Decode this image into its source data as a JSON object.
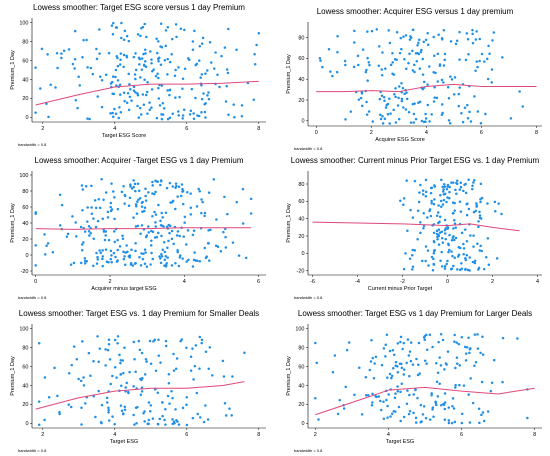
{
  "colors": {
    "points": "#1f8fe6",
    "smooth": "#e0487c",
    "axis": "#000000"
  },
  "chart_data": [
    {
      "type": "scatter",
      "title": "Lowess smoother:  Target ESG score versus 1 day Premium",
      "xlabel": "Target ESG Score",
      "ylabel": "Premium_1 Day",
      "note": "bandwidth = 0.8",
      "xlim": [
        1.7,
        8.2
      ],
      "ylim": [
        -5,
        105
      ],
      "xticks": [
        2,
        4,
        6,
        8
      ],
      "yticks": [
        0,
        20,
        40,
        60,
        80,
        100
      ],
      "x_range": [
        1.8,
        8.0
      ],
      "y_range": [
        -2,
        100
      ],
      "n_points": 260,
      "seed": 11,
      "lowess": {
        "x": [
          1.8,
          3,
          4,
          5,
          6,
          7,
          8
        ],
        "y": [
          13,
          24,
          32,
          35,
          35,
          36,
          38
        ]
      }
    },
    {
      "type": "scatter",
      "title": "Lowess smoother:  Acquirer ESG versus 1 day premium",
      "xlabel": "Acquirer ESG Score",
      "ylabel": "Premium_1 Day",
      "note": "bandwidth = 0.8",
      "xlim": [
        -0.3,
        8.2
      ],
      "ylim": [
        -5,
        95
      ],
      "xticks": [
        0,
        2,
        4,
        6,
        8
      ],
      "yticks": [
        0,
        20,
        40,
        60,
        80
      ],
      "x_range": [
        0,
        7.5
      ],
      "y_range": [
        -3,
        88
      ],
      "n_points": 230,
      "seed": 23,
      "lowess": {
        "x": [
          0,
          1,
          2,
          3,
          4,
          5,
          6,
          7,
          8
        ],
        "y": [
          28,
          28,
          29,
          28,
          33,
          35,
          33,
          33,
          33
        ]
      }
    },
    {
      "type": "scatter",
      "title": "Lowess smoother:  Acquirer -Target ESG vs 1 day Premium",
      "xlabel": "Acquirer minus target ESG",
      "ylabel": "Premium_1 Day",
      "note": "bandwidth = 0.8",
      "xlim": [
        -0.1,
        6.2
      ],
      "ylim": [
        -25,
        105
      ],
      "xticks": [
        0,
        2,
        4,
        6
      ],
      "yticks": [
        -20,
        0,
        20,
        40,
        60,
        80,
        100
      ],
      "x_range": [
        0,
        5.8
      ],
      "y_range": [
        -15,
        95
      ],
      "n_points": 320,
      "seed": 37,
      "lowess": {
        "x": [
          0,
          1,
          2,
          3,
          4,
          5,
          5.8
        ],
        "y": [
          33,
          32,
          33,
          33,
          34,
          34,
          34
        ]
      }
    },
    {
      "type": "scatter",
      "title": "Lowess smoother:  Current minus Prior Target ESG vs. 1 day Premium",
      "xlabel": "Current minus Prior Target",
      "ylabel": "Premium_1 Day",
      "note": "bandwidth = 0.8",
      "xlim": [
        -6.2,
        4.2
      ],
      "ylim": [
        -25,
        95
      ],
      "xticks": [
        -6,
        -4,
        -2,
        0,
        2,
        4
      ],
      "yticks": [
        -20,
        0,
        20,
        40,
        60,
        80
      ],
      "x_range": [
        -2.2,
        2.4
      ],
      "y_range": [
        -20,
        85
      ],
      "n_points": 230,
      "seed": 51,
      "lowess": {
        "x": [
          -6,
          -4,
          -2,
          0,
          1,
          2,
          3.2
        ],
        "y": [
          36,
          35,
          34,
          32,
          34,
          30,
          26
        ]
      }
    },
    {
      "type": "scatter",
      "title": "Lowess smoother:  Target ESG vs. 1 day Premium for Smaller Deals",
      "xlabel": "Target ESG",
      "ylabel": "Premium_1 Day",
      "note": "bandwidth = 0.8",
      "xlim": [
        1.7,
        8.2
      ],
      "ylim": [
        -5,
        105
      ],
      "xticks": [
        2,
        4,
        6,
        8
      ],
      "yticks": [
        0,
        20,
        40,
        60,
        80,
        100
      ],
      "x_range": [
        1.9,
        7.6
      ],
      "y_range": [
        -2,
        92
      ],
      "n_points": 190,
      "seed": 67,
      "lowess": {
        "x": [
          1.8,
          3,
          4,
          5,
          6,
          7,
          7.6
        ],
        "y": [
          15,
          27,
          34,
          37,
          37,
          40,
          44
        ]
      }
    },
    {
      "type": "scatter",
      "title": "Lowess smoother:  Target ESG vs 1 day Premium for Larger Deals",
      "xlabel": "Target ESG",
      "ylabel": "Premium_1 Day",
      "note": "bandwidth = 0.8",
      "xlim": [
        1.8,
        8.2
      ],
      "ylim": [
        -5,
        105
      ],
      "xticks": [
        2,
        4,
        6,
        8
      ],
      "yticks": [
        0,
        20,
        40,
        60,
        80,
        100
      ],
      "x_range": [
        2.0,
        7.8
      ],
      "y_range": [
        0,
        95
      ],
      "n_points": 210,
      "seed": 83,
      "lowess": {
        "x": [
          2,
          3,
          4,
          5,
          6,
          7,
          8
        ],
        "y": [
          9,
          22,
          35,
          38,
          34,
          31,
          37
        ]
      }
    }
  ]
}
